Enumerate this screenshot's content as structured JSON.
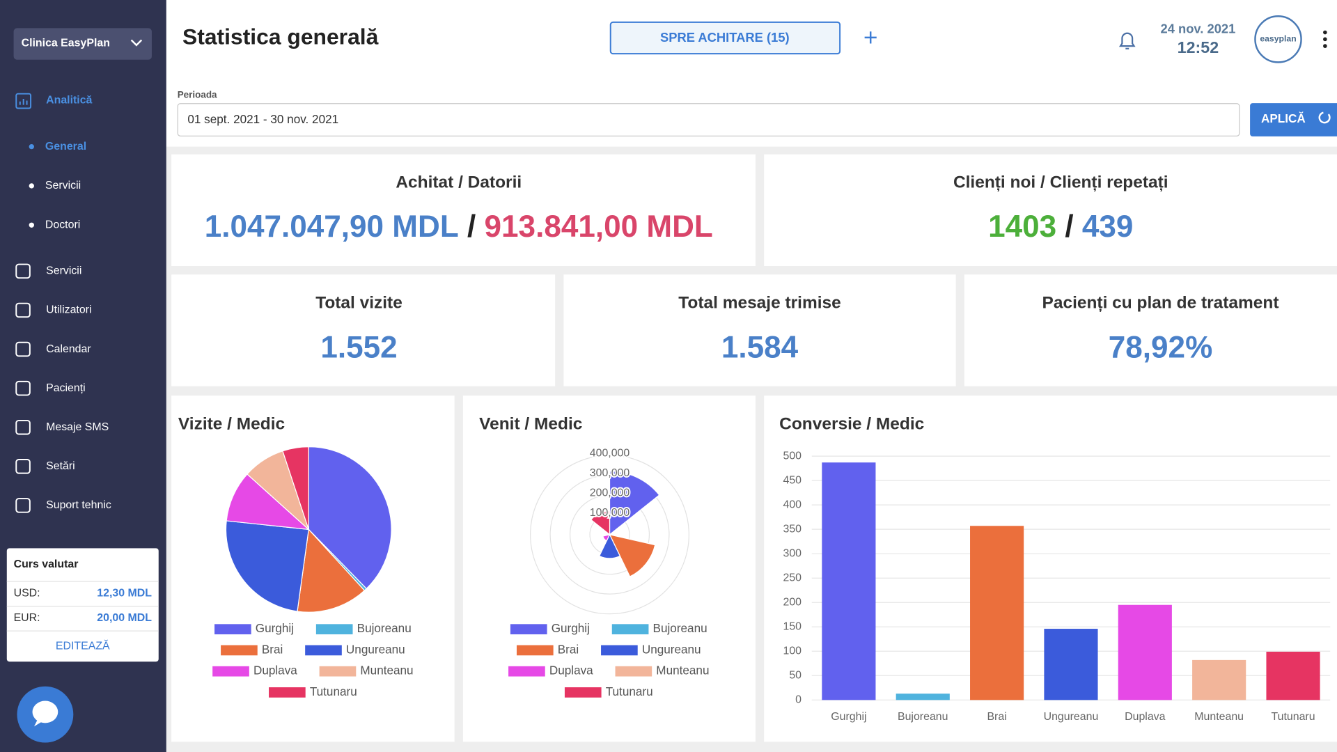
{
  "sidebar": {
    "clinic": "Clinica EasyPlan",
    "analytics": "Analitică",
    "analytics_items": [
      "General",
      "Servicii",
      "Doctori"
    ],
    "menu": [
      "Servicii",
      "Utilizatori",
      "Calendar",
      "Pacienți",
      "Mesaje SMS",
      "Setări",
      "Suport tehnic"
    ],
    "currency": {
      "title": "Curs valutar",
      "rows": [
        [
          "USD:",
          "12,30 MDL"
        ],
        [
          "EUR:",
          "20,00 MDL"
        ]
      ],
      "edit": "EDITEAZĂ"
    }
  },
  "header": {
    "title": "Statistica generală",
    "pay_button": "SPRE ACHITARE (15)",
    "date": "24 nov. 2021",
    "time": "12:52",
    "avatar": "easyplan"
  },
  "period": {
    "label": "Perioada",
    "value": "01 sept. 2021 - 30 nov. 2021",
    "apply": "APLICĂ"
  },
  "summary": {
    "paid_debts": {
      "title": "Achitat / Datorii",
      "paid": "1.047.047,90 MDL",
      "separator": "/",
      "debts": "913.841,00 MDL"
    },
    "clients": {
      "title": "Clienți noi / Clienți repetați",
      "new": "1403",
      "separator": "/",
      "repeat": "439"
    },
    "cards": [
      {
        "title": "Total vizite",
        "value": "1.552"
      },
      {
        "title": "Total mesaje trimise",
        "value": "1.584"
      },
      {
        "title": "Pacienți cu plan de tratament",
        "value": "78,92%"
      }
    ]
  },
  "chart_data": [
    {
      "type": "pie",
      "title": "Vizite / Medic",
      "categories": [
        "Gurghij",
        "Bujoreanu",
        "Brai",
        "Ungureanu",
        "Duplava",
        "Munteanu",
        "Tutunaru"
      ],
      "colors": [
        "#6161ee",
        "#4fb3de",
        "#eb6f3c",
        "#3b5bdb",
        "#e649e6",
        "#f2b59a",
        "#e63462"
      ],
      "values": [
        585,
        8,
        217,
        380,
        155,
        128,
        79
      ]
    },
    {
      "type": "polar",
      "title": "Venit / Medic",
      "categories": [
        "Gurghij",
        "Bujoreanu",
        "Brai",
        "Ungureanu",
        "Duplava",
        "Munteanu",
        "Tutunaru"
      ],
      "colors": [
        "#6161ee",
        "#4fb3de",
        "#eb6f3c",
        "#3b5bdb",
        "#e649e6",
        "#f2b59a",
        "#e63462"
      ],
      "values": [
        320000,
        4000,
        235000,
        120000,
        35000,
        5000,
        120000
      ],
      "rlim": [
        0,
        400000
      ],
      "rticks": [
        {
          "value": 100000,
          "label": "100,000"
        },
        {
          "value": 200000,
          "label": "200,000"
        },
        {
          "value": 300000,
          "label": "300,000"
        },
        {
          "value": 400000,
          "label": "400,000"
        }
      ]
    },
    {
      "type": "bar",
      "title": "Conversie / Medic",
      "categories": [
        "Gurghij",
        "Bujoreanu",
        "Brai",
        "Ungureanu",
        "Duplava",
        "Munteanu",
        "Tutunaru"
      ],
      "colors": [
        "#6161ee",
        "#4fb3de",
        "#eb6f3c",
        "#3b5bdb",
        "#e649e6",
        "#f2b59a",
        "#e63462"
      ],
      "values": [
        487,
        13,
        357,
        146,
        195,
        82,
        99
      ],
      "ylim": [
        0,
        500
      ],
      "yticks": [
        0,
        50,
        100,
        150,
        200,
        250,
        300,
        350,
        400,
        450,
        500
      ],
      "grid": true
    }
  ]
}
